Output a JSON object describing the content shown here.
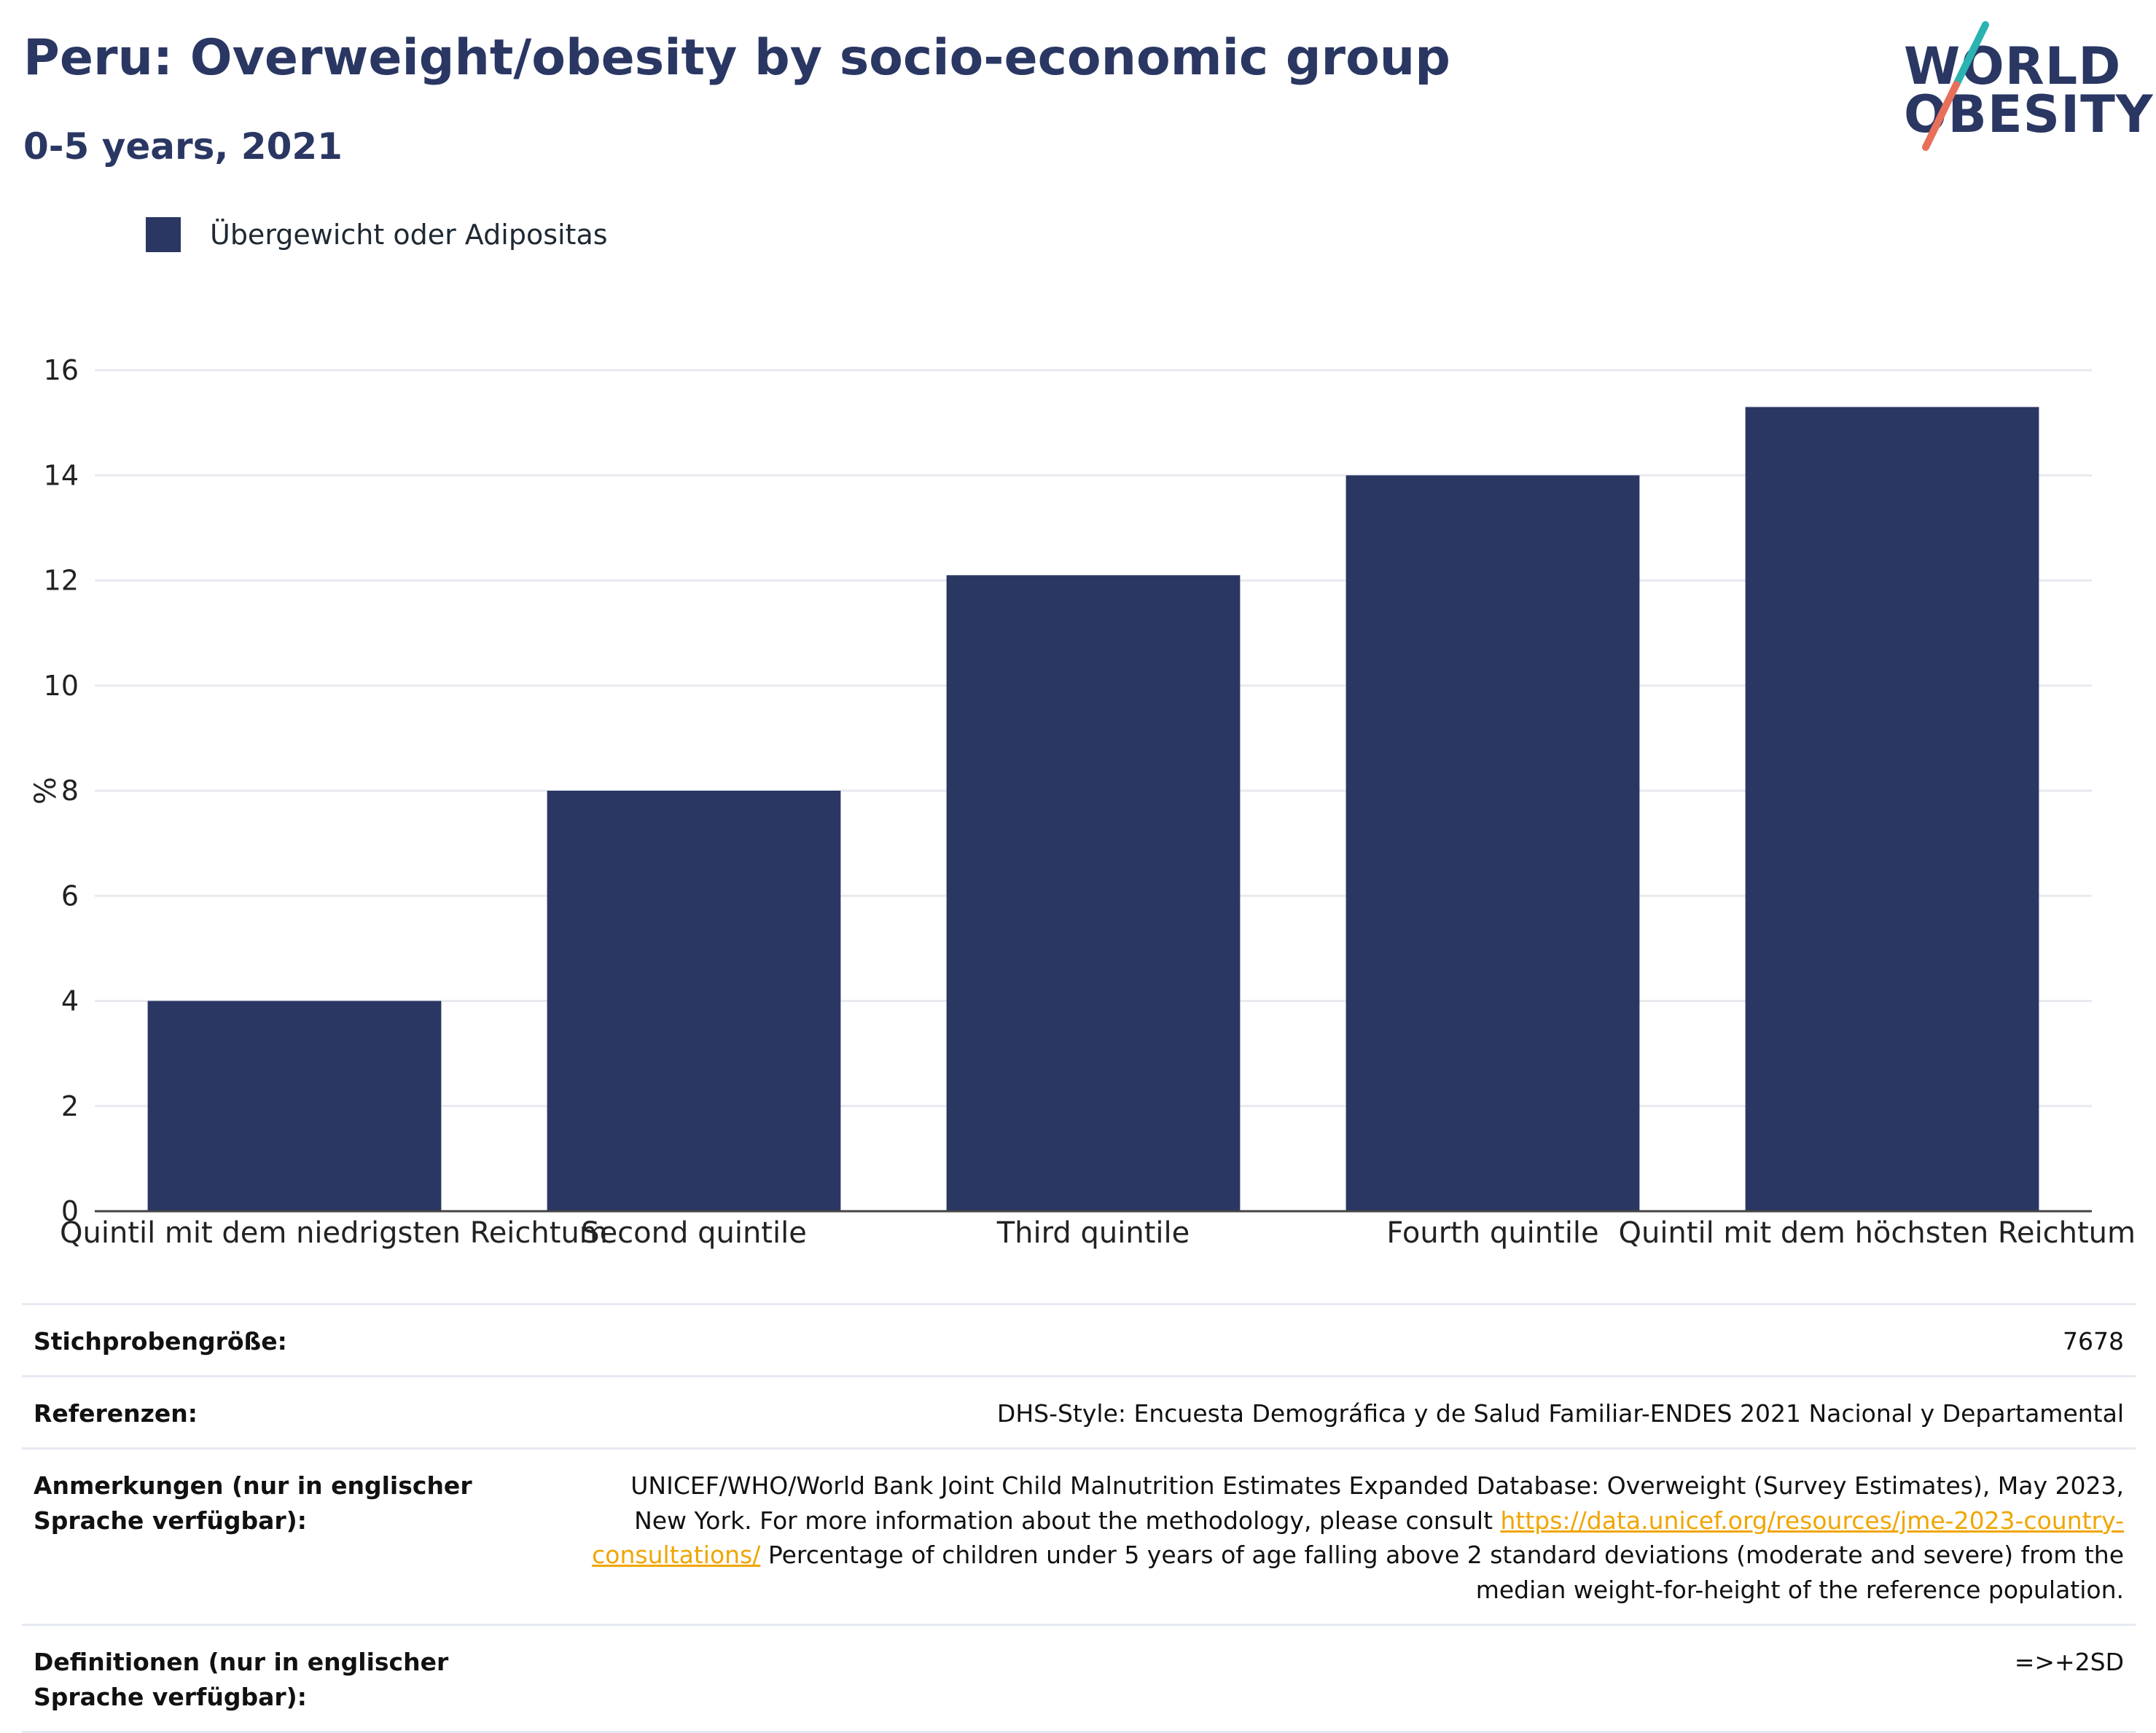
{
  "header": {
    "title": "Peru: Overweight/obesity by socio-economic group",
    "subtitle": "0-5 years, 2021"
  },
  "logo": {
    "line1": "WORLD",
    "line2": "OBESITY",
    "colors": {
      "text": "#2a3763",
      "slash_top": "#2bb3b1",
      "slash_bottom": "#e8705a"
    }
  },
  "legend": {
    "label": "Übergewicht oder Adipositas",
    "color": "#2a3763"
  },
  "chart_data": {
    "type": "bar",
    "categories": [
      "Quintil mit dem niedrigsten Reichtum",
      "Second quintile",
      "Third quintile",
      "Fourth quintile",
      "Quintil mit dem höchsten Reichtum"
    ],
    "series": [
      {
        "name": "Übergewicht oder Adipositas",
        "values": [
          4.0,
          8.0,
          12.1,
          14.0,
          15.3
        ],
        "color": "#2a3763"
      }
    ],
    "ylabel": "%",
    "ylim": [
      0,
      16
    ],
    "yticks": [
      0,
      2,
      4,
      6,
      8,
      10,
      12,
      14,
      16
    ],
    "grid": true,
    "legend_position": "top-left"
  },
  "footer": {
    "rows": [
      {
        "key": "Stichprobengröße:",
        "value": "7678"
      },
      {
        "key": "Referenzen:",
        "value": "DHS-Style: Encuesta Demográfica y de Salud Familiar-ENDES 2021 Nacional y Departamental"
      },
      {
        "key": "Anmerkungen (nur in englischer Sprache verfügbar):",
        "value_before": "UNICEF/WHO/World Bank Joint Child Malnutrition Estimates Expanded Database: Overweight (Survey Estimates), May 2023, New York. For more information about the methodology, please consult ",
        "link": "https://data.unicef.org/resources/jme-2023-country-consultations/",
        "value_after": " Percentage of children under 5 years of age falling above 2 standard deviations (moderate and severe) from the median weight-for-height of the reference population."
      },
      {
        "key": "Definitionen (nur in englischer Sprache verfügbar):",
        "value": "=>+2SD"
      }
    ]
  }
}
